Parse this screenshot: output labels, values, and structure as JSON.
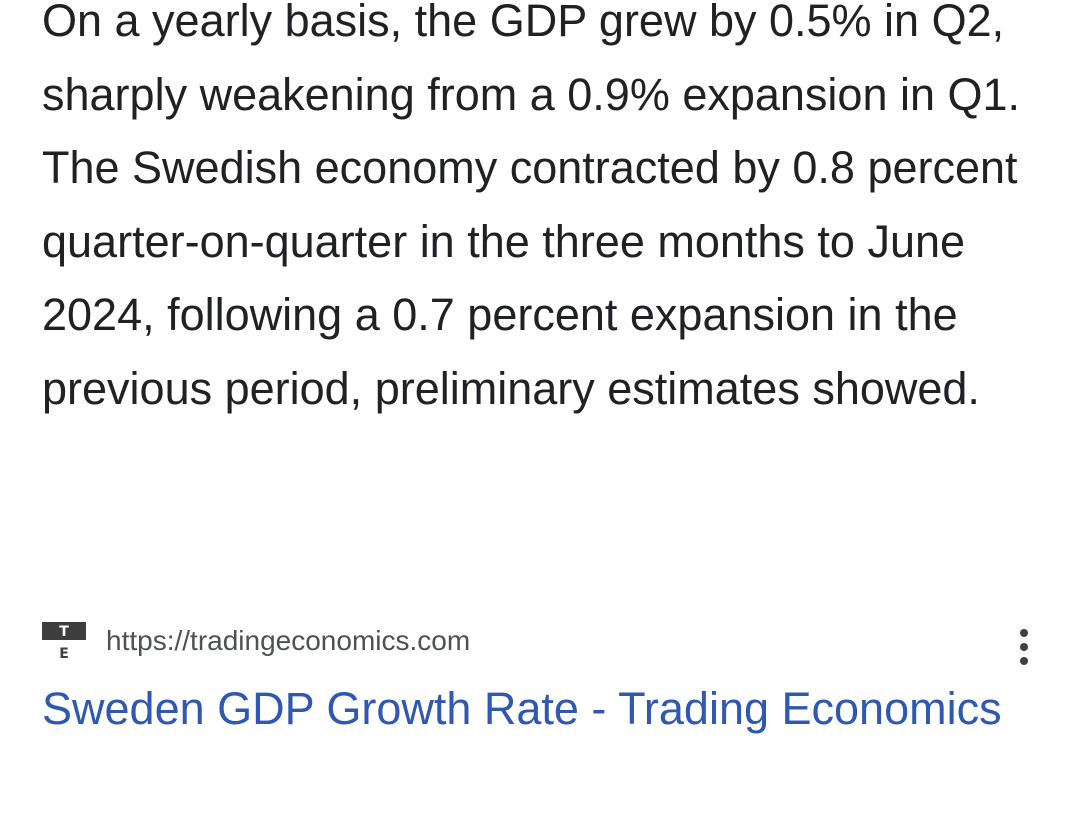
{
  "snippet": {
    "text": "On a yearly basis, the GDP grew by 0.5% in Q2, sharply weakening from a 0.9% expansion in Q1. The Swedish economy contracted by 0.8 percent quarter-on-quarter in the three months to June 2024, following a 0.7 percent expansion in the previous period, preliminary estimates showed."
  },
  "source": {
    "favicon_letters": [
      "T",
      "E"
    ],
    "url": "https://tradingeconomics.com",
    "more_icon": "more-vert-icon"
  },
  "result": {
    "title": "Sweden GDP Growth Rate - Trading Economics"
  },
  "colors": {
    "text": "#202124",
    "url": "#4d5156",
    "link": "#2f58b2",
    "icon": "#3c4043"
  }
}
